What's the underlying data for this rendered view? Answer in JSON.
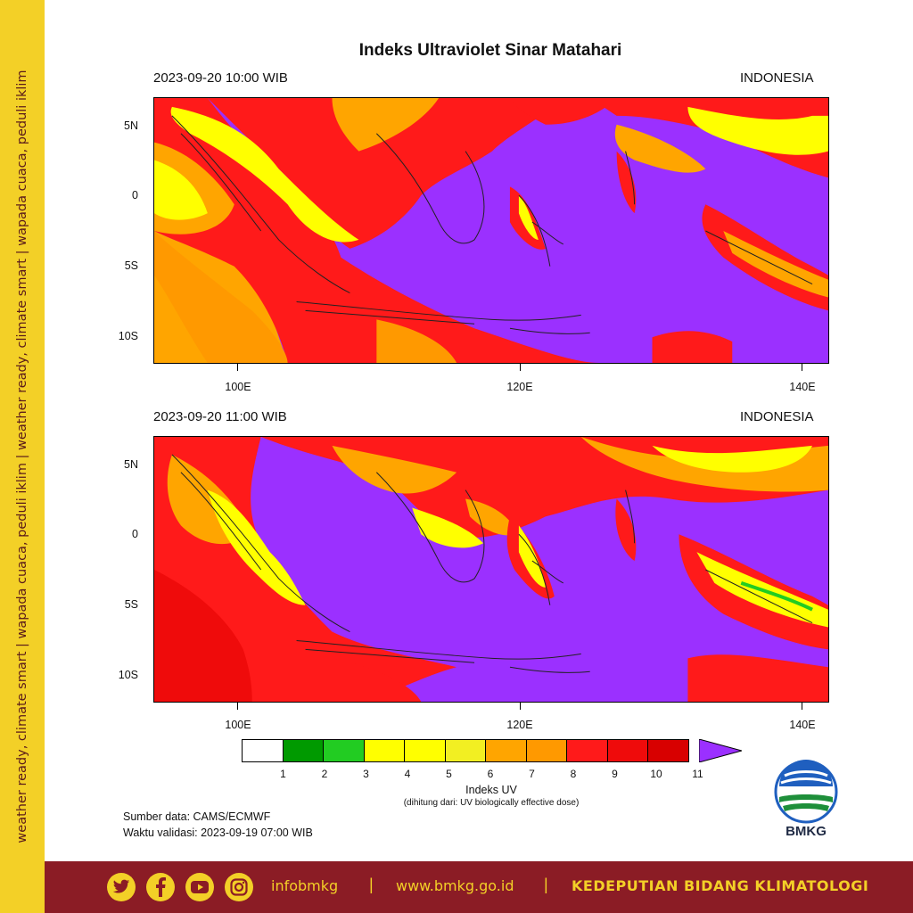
{
  "side_banner": {
    "text": "weather ready, climate smart  |  wapada cuaca, peduli iklim  |  weather ready, climate smart  |  wapada cuaca, peduli iklim"
  },
  "title": "Indeks Ultraviolet Sinar Matahari",
  "panels": [
    {
      "date": "2023-09-20  10:00 WIB",
      "region": "INDONESIA"
    },
    {
      "date": "2023-09-20  11:00 WIB",
      "region": "INDONESIA"
    }
  ],
  "axes": {
    "lat_labels": [
      "5N",
      "0",
      "5S",
      "10S"
    ],
    "lon_labels": [
      "100E",
      "120E",
      "140E"
    ]
  },
  "legend": {
    "title": "Indeks UV",
    "subtitle": "(dihitung dari: UV biologically effective dose)",
    "values": [
      "1",
      "2",
      "3",
      "4",
      "5",
      "6",
      "7",
      "8",
      "9",
      "10",
      "11"
    ],
    "colors": [
      "#ffffff",
      "#009a00",
      "#22cc22",
      "#ffff00",
      "#ffff00",
      "#f2ef22",
      "#ffa500",
      "#ff9900",
      "#ff1a1a",
      "#ef0b0b",
      "#d80000",
      "#9b30ff"
    ]
  },
  "source": {
    "line1": "Sumber data: CAMS/ECMWF",
    "line2": "Waktu validasi: 2023-09-19 07:00 WIB"
  },
  "logo": {
    "text": "BMKG",
    "icon": "bmkg-logo-icon"
  },
  "footer": {
    "social_icons": [
      "twitter-icon",
      "facebook-icon",
      "youtube-icon",
      "instagram-icon"
    ],
    "handle": "infobmkg",
    "separator": "|",
    "website": "www.bmkg.go.id",
    "department": "KEDEPUTIAN BIDANG KLIMATOLOGI"
  },
  "colors": {
    "banner_yellow": "#f3d027",
    "footer_red": "#8b1c25",
    "uv_purple": "#9b30ff",
    "uv_red": "#ff1a1a",
    "uv_orange": "#ffa500",
    "uv_yellow": "#ffff00"
  }
}
